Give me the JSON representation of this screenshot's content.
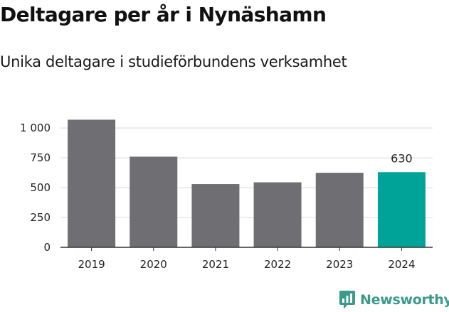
{
  "chart_data": {
    "type": "bar",
    "title": "Deltagare per år i Nynäshamn",
    "subtitle": "Unika deltagare i studieförbundens verksamhet",
    "categories": [
      "2019",
      "2020",
      "2021",
      "2022",
      "2023",
      "2024"
    ],
    "values": [
      1070,
      760,
      530,
      545,
      625,
      630
    ],
    "highlight_index": 5,
    "highlight_label": "630",
    "ylim": [
      0,
      1150
    ],
    "yticks": [
      0,
      250,
      500,
      750,
      1000
    ],
    "ytick_labels": [
      "0",
      "250",
      "500",
      "750",
      "1 000"
    ],
    "grid": true,
    "xlabel": "",
    "ylabel": ""
  },
  "colors": {
    "bar": "#6e6e73",
    "highlight": "#00a398",
    "grid": "#d9d9d9",
    "axis": "#333333",
    "brand": "#3a9a8c"
  },
  "brand": {
    "name": "Newsworthy",
    "icon": "newsworthy-logo-icon"
  }
}
